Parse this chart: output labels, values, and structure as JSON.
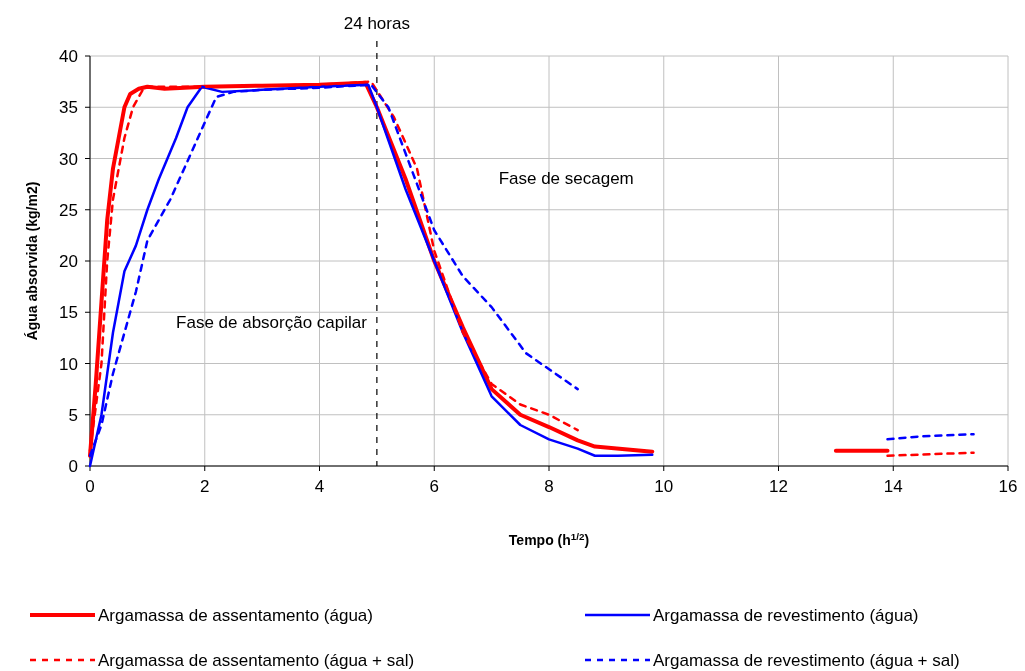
{
  "chart_data": {
    "type": "line",
    "xlabel": "Tempo (h$^{1/2}$)",
    "ylabel": "Água absorvida (kg/m2)",
    "xlim": [
      0,
      16
    ],
    "xticks": [
      0,
      2,
      4,
      6,
      8,
      10,
      12,
      14,
      16
    ],
    "ylim": [
      0,
      40
    ],
    "yticks": [
      0,
      5,
      10,
      15,
      20,
      25,
      30,
      35,
      40
    ],
    "grid": true,
    "legend": "bottom",
    "ref_lines": [
      {
        "axis": "x",
        "value": 5,
        "label": "24 horas",
        "color": "#000000",
        "line_style": "dashed"
      }
    ],
    "annotations": [
      "Fase de absorção capilar",
      "Fase de secagem"
    ],
    "series": [
      {
        "name": "Argamassa de assentamento (água)",
        "color": "#ff0000",
        "line_style": "solid",
        "x": [
          0,
          0.1,
          0.2,
          0.3,
          0.4,
          0.5,
          0.6,
          0.7,
          0.85,
          1,
          1.3,
          2,
          3,
          4,
          4.8,
          5,
          5.5,
          6,
          6.5,
          7,
          7.5,
          8,
          8.5,
          8.8,
          9.8,
          11,
          13,
          13.9
        ],
        "values": [
          1,
          8,
          16,
          24,
          29,
          32,
          35,
          36.3,
          36.8,
          37,
          36.8,
          37,
          37.1,
          37.2,
          37.4,
          35,
          28,
          20,
          13.5,
          7.5,
          5,
          3.8,
          2.5,
          1.9,
          1.4,
          null,
          1.5,
          1.5
        ]
      },
      {
        "name": "Argamassa de revestimento (água)",
        "color": "#0000ff",
        "line_style": "solid",
        "x": [
          0,
          0.2,
          0.3,
          0.4,
          0.5,
          0.6,
          0.8,
          1,
          1.2,
          1.5,
          1.7,
          1.95,
          2.3,
          3,
          4,
          4.85,
          5,
          5.5,
          6,
          6.5,
          7,
          7.5,
          8,
          8.5,
          8.8,
          9.2,
          9.8
        ],
        "values": [
          0,
          5,
          9,
          13,
          16,
          19,
          21.5,
          25,
          28,
          32,
          35,
          37,
          36.5,
          36.7,
          37,
          37.2,
          35,
          27,
          20,
          13,
          6.8,
          4,
          2.6,
          1.7,
          1,
          1,
          1.1
        ]
      },
      {
        "name": "Argamassa de assentamento (água + sal)",
        "color": "#ff0000",
        "line_style": "dashed",
        "x": [
          0,
          0.2,
          0.3,
          0.4,
          0.5,
          0.6,
          0.75,
          0.95,
          2,
          4,
          4.9,
          5.3,
          5.7,
          6,
          6.5,
          7,
          7.5,
          8,
          8.5,
          11,
          13.9,
          15.4
        ],
        "values": [
          1.5,
          10,
          20,
          26,
          29,
          32,
          35,
          37,
          37,
          37.2,
          37.5,
          34,
          29,
          21,
          13,
          8,
          6,
          5,
          3.5,
          null,
          1,
          1.3
        ]
      },
      {
        "name": "Argamassa de revestimento (água + sal)",
        "color": "#0000ff",
        "line_style": "dashed",
        "x": [
          0,
          0.2,
          0.4,
          0.6,
          0.8,
          1,
          1.4,
          1.8,
          2.2,
          2.5,
          3,
          4,
          4.9,
          5.2,
          5.6,
          6,
          6.5,
          7,
          7.6,
          8.5,
          11,
          13.9,
          14.5,
          15.4
        ],
        "values": [
          1,
          4,
          9,
          13,
          17,
          22,
          26,
          31,
          36,
          36.5,
          36.7,
          36.9,
          37.2,
          35,
          29,
          23,
          18.5,
          15.5,
          11,
          7.5,
          null,
          2.6,
          2.9,
          3.1
        ]
      }
    ]
  }
}
